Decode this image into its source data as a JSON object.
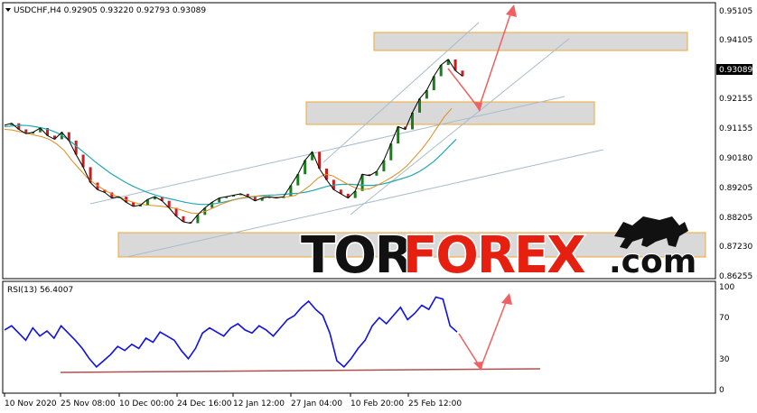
{
  "header": {
    "symbol_line": "USDCHF,H4  0.92905 0.93220 0.92793 0.93089",
    "rsi_line": "RSI(13) 56.4007"
  },
  "logo": {
    "part1": "TOR",
    "part2": "FOREX",
    "part3": ".com",
    "part1_color": "#111111",
    "part2_color": "#e62010"
  },
  "colors": {
    "price_line": "#000000",
    "bull_candle": "#1a7f1a",
    "bear_candle": "#c81e1e",
    "ma_fast": "#e08a1e",
    "ma_slow": "#20a8b4",
    "rsi_line": "#1010e6",
    "rsi_support": "#b05050",
    "arrow": "#f06060",
    "zone_fill": "#d9d9d9",
    "zone_border": "#f0a830",
    "channel": "#a0b4c8",
    "current_price_bg": "#000000"
  },
  "chart_data": [
    {
      "type": "line",
      "title": "USDCHF,H4",
      "xlabel": "",
      "ylabel": "",
      "x_ticks": [
        "10 Nov 2020",
        "25 Nov 08:00",
        "10 Dec 00:00",
        "24 Dec 16:00",
        "12 Jan 12:00",
        "27 Jan 04:00",
        "10 Feb 20:00",
        "25 Feb 12:00"
      ],
      "y_ticks": [
        "0.95105",
        "0.94105",
        "0.93089",
        "0.92155",
        "0.91155",
        "0.90180",
        "0.89205",
        "0.88205",
        "0.87230",
        "0.86255"
      ],
      "current_price": "0.93089",
      "ylim": [
        0.86,
        0.955
      ],
      "series": [
        {
          "name": "USDCHF",
          "values": [
            0.9135,
            0.9142,
            0.912,
            0.9105,
            0.911,
            0.9125,
            0.9098,
            0.9085,
            0.911,
            0.908,
            0.903,
            0.8985,
            0.893,
            0.8905,
            0.8895,
            0.8875,
            0.888,
            0.886,
            0.8845,
            0.885,
            0.887,
            0.888,
            0.8865,
            0.884,
            0.881,
            0.879,
            0.8785,
            0.8815,
            0.884,
            0.886,
            0.8875,
            0.888,
            0.8885,
            0.889,
            0.888,
            0.8865,
            0.8875,
            0.888,
            0.8875,
            0.888,
            0.892,
            0.896,
            0.901,
            0.904,
            0.898,
            0.894,
            0.8905,
            0.889,
            0.8875,
            0.89,
            0.896,
            0.8955,
            0.897,
            0.901,
            0.907,
            0.913,
            0.912,
            0.918,
            0.923,
            0.926,
            0.931,
            0.935,
            0.937,
            0.933,
            0.931
          ]
        },
        {
          "name": "",
          "values": [
            0.912,
            0.9118,
            0.9112,
            0.9106,
            0.91,
            0.9094,
            0.9085,
            0.9068,
            0.9045,
            0.901,
            0.898,
            0.895,
            0.8928,
            0.891,
            0.8895,
            0.8882,
            0.8872,
            0.8862,
            0.8855,
            0.885,
            0.8848,
            0.8846,
            0.8842,
            0.8838,
            0.883,
            0.8822,
            0.882,
            0.8828,
            0.884,
            0.8852,
            0.8862,
            0.887,
            0.8876,
            0.888,
            0.8882,
            0.888,
            0.8878,
            0.8878,
            0.888,
            0.8884,
            0.89,
            0.892,
            0.8945,
            0.896,
            0.8955,
            0.894,
            0.8925,
            0.8912,
            0.8905,
            0.8908,
            0.892,
            0.8935,
            0.895,
            0.8968,
            0.899,
            0.902,
            0.905,
            0.9085,
            0.9125,
            0.9165,
            0.9195
          ]
        },
        {
          "name": "",
          "values": [
            0.913,
            0.9132,
            0.9135,
            0.9134,
            0.913,
            0.9125,
            0.9118,
            0.9108,
            0.9092,
            0.9072,
            0.905,
            0.9028,
            0.9005,
            0.8985,
            0.8965,
            0.8948,
            0.8932,
            0.8918,
            0.8906,
            0.8895,
            0.8886,
            0.8878,
            0.8872,
            0.8866,
            0.886,
            0.8855,
            0.8852,
            0.8852,
            0.8855,
            0.886,
            0.8866,
            0.8872,
            0.8876,
            0.888,
            0.8883,
            0.8885,
            0.8886,
            0.8888,
            0.889,
            0.8892,
            0.8896,
            0.8902,
            0.891,
            0.8918,
            0.8922,
            0.8924,
            0.8924,
            0.8922,
            0.892,
            0.892,
            0.8924,
            0.893,
            0.8938,
            0.8946,
            0.8955,
            0.8968,
            0.8985,
            0.9005,
            0.903,
            0.9058,
            0.9085
          ]
        }
      ]
    },
    {
      "type": "line",
      "title": "RSI(13) 56.4007",
      "xlabel": "",
      "ylabel": "",
      "y_ticks": [
        "100",
        "70",
        "30",
        "0"
      ],
      "ylim": [
        0,
        100
      ],
      "series": [
        {
          "name": "RSI(13)",
          "values": [
            58,
            62,
            55,
            48,
            60,
            52,
            57,
            50,
            62,
            55,
            48,
            40,
            30,
            22,
            28,
            34,
            42,
            38,
            44,
            40,
            50,
            46,
            56,
            52,
            48,
            38,
            30,
            40,
            55,
            60,
            56,
            52,
            60,
            64,
            58,
            55,
            62,
            58,
            52,
            60,
            68,
            72,
            80,
            86,
            78,
            72,
            55,
            28,
            22,
            30,
            40,
            48,
            62,
            70,
            64,
            72,
            80,
            68,
            74,
            82,
            78,
            90,
            88,
            62,
            56
          ]
        }
      ]
    }
  ]
}
